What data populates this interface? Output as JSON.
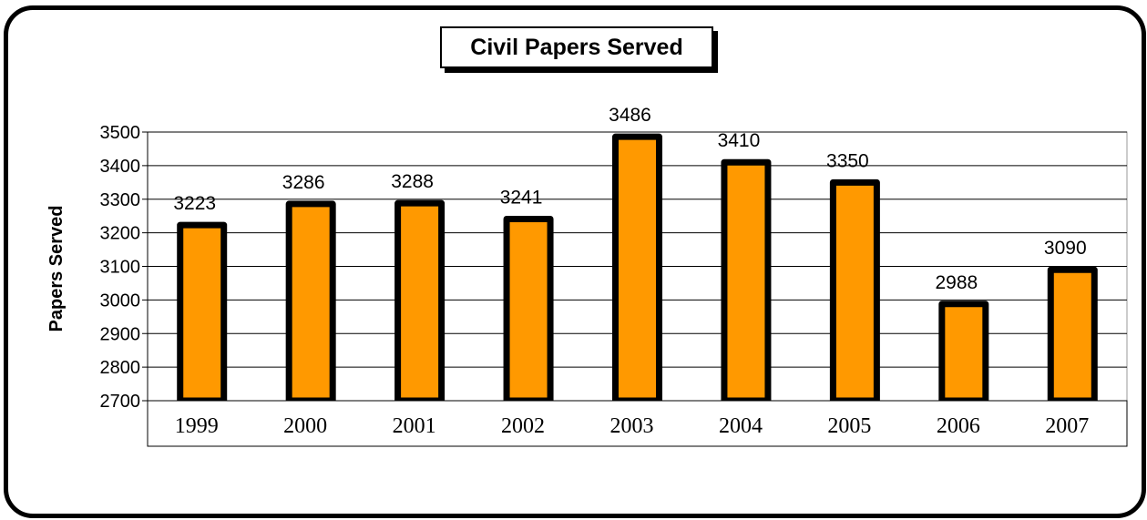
{
  "chart_data": {
    "type": "bar",
    "title": "Civil Papers Served",
    "xlabel": "",
    "ylabel": "Papers Served",
    "categories": [
      "1999",
      "2000",
      "2001",
      "2002",
      "2003",
      "2004",
      "2005",
      "2006",
      "2007"
    ],
    "values": [
      3223,
      3286,
      3288,
      3241,
      3486,
      3410,
      3350,
      2988,
      3090
    ],
    "ylim": [
      2700,
      3500
    ],
    "yticks": [
      2700,
      2800,
      2900,
      3000,
      3100,
      3200,
      3300,
      3400,
      3500
    ],
    "grid": true,
    "legend": "none",
    "colors": {
      "bar_fill": "#FF9900",
      "bar_outline": "#000000",
      "gridline": "#000000"
    }
  }
}
